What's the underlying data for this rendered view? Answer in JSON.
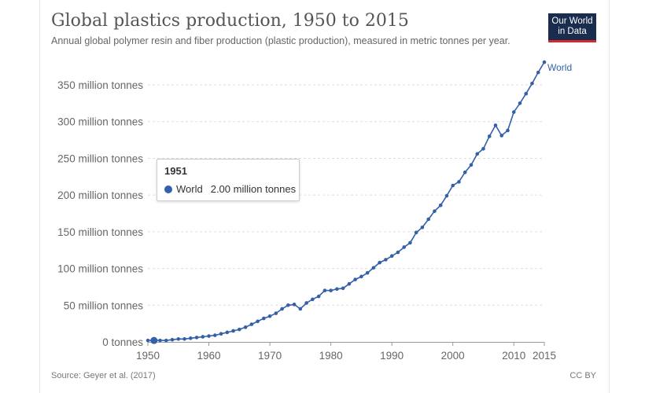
{
  "header": {
    "title": "Global plastics production, 1950 to 2015",
    "subtitle": "Annual global polymer resin and fiber production (plastic production), measured in metric tonnes per year.",
    "logo_line1": "Our World",
    "logo_line2": "in Data"
  },
  "footer": {
    "source": "Source: Geyer et al. (2017)",
    "license": "CC BY"
  },
  "tooltip": {
    "year": "1951",
    "series": "World",
    "value": "2.00 million tonnes"
  },
  "colors": {
    "series": "#3360a9",
    "logo_bg": "#1a2d4f",
    "logo_accent": "#cf2b31"
  },
  "chart_data": {
    "type": "line",
    "title": "Global plastics production, 1950 to 2015",
    "xlabel": "",
    "ylabel": "",
    "xlim": [
      1950,
      2015
    ],
    "ylim": [
      0,
      380
    ],
    "x_ticks": [
      1950,
      1960,
      1970,
      1980,
      1990,
      2000,
      2010,
      2015
    ],
    "y_ticks": [
      {
        "value": 0,
        "label": "0 tonnes"
      },
      {
        "value": 50,
        "label": "50 million tonnes"
      },
      {
        "value": 100,
        "label": "100 million tonnes"
      },
      {
        "value": 150,
        "label": "150 million tonnes"
      },
      {
        "value": 200,
        "label": "200 million tonnes"
      },
      {
        "value": 250,
        "label": "250 million tonnes"
      },
      {
        "value": 300,
        "label": "300 million tonnes"
      },
      {
        "value": 350,
        "label": "350 million tonnes"
      }
    ],
    "series": [
      {
        "name": "World",
        "unit": "million tonnes",
        "x": [
          1950,
          1951,
          1952,
          1953,
          1954,
          1955,
          1956,
          1957,
          1958,
          1959,
          1960,
          1961,
          1962,
          1963,
          1964,
          1965,
          1966,
          1967,
          1968,
          1969,
          1970,
          1971,
          1972,
          1973,
          1974,
          1975,
          1976,
          1977,
          1978,
          1979,
          1980,
          1981,
          1982,
          1983,
          1984,
          1985,
          1986,
          1987,
          1988,
          1989,
          1990,
          1991,
          1992,
          1993,
          1994,
          1995,
          1996,
          1997,
          1998,
          1999,
          2000,
          2001,
          2002,
          2003,
          2004,
          2005,
          2006,
          2007,
          2008,
          2009,
          2010,
          2011,
          2012,
          2013,
          2014,
          2015
        ],
        "values": [
          2,
          2,
          2,
          2,
          3,
          4,
          4,
          5,
          6,
          7,
          8,
          9,
          11,
          13,
          15,
          17,
          20,
          24,
          28,
          32,
          35,
          39,
          45,
          50,
          51,
          45,
          53,
          58,
          62,
          70,
          70,
          72,
          73,
          79,
          85,
          89,
          94,
          101,
          108,
          112,
          117,
          122,
          129,
          135,
          149,
          156,
          167,
          178,
          186,
          199,
          213,
          218,
          231,
          241,
          256,
          263,
          280,
          295,
          281,
          288,
          313,
          325,
          338,
          352,
          367,
          381
        ]
      }
    ]
  }
}
